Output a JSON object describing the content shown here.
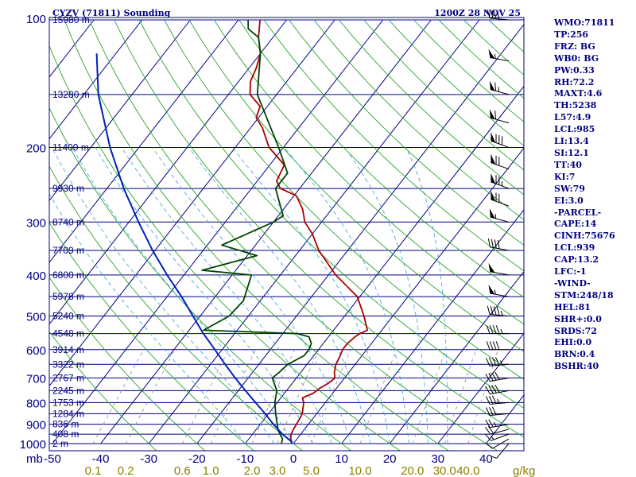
{
  "header": {
    "station": "CYZV (71811) Sounding",
    "time": "1200Z 28 NOV 25"
  },
  "indices": [
    "WMO:71811",
    "TP:256",
    "FRZ: BG",
    "WB0: BG",
    "PW:0.33",
    "RH:72.2",
    "MAXT:4.6",
    "TH:5238",
    "L57:4.9",
    "LCL:985",
    "LI:13.4",
    "SI:12.1",
    "TT:40",
    "KI:7",
    "SW:79",
    "EI:3.0",
    "-PARCEL-",
    "CAPE:14",
    "CINH:75676",
    "LCL:939",
    "CAP:13.2",
    "LFC:-1",
    "-WIND-",
    "STM:248/18",
    "HEL:81",
    "SHR+:0.0",
    "SRDS:72",
    "EHI:0.0",
    "BRN:0.4",
    "BSHR:40"
  ],
  "colors": {
    "isobar": "#000080",
    "isotherm": "#000080",
    "dry_adiabat": "#2aa52a",
    "moist_adiabat": "#4aa8e0",
    "mixing_ratio": "#888888",
    "temperature": "#aa0000",
    "dewpoint": "#004400",
    "parcel": "#0022bb",
    "frame": "#000080",
    "wind_barb": "#000000"
  },
  "chart_data": {
    "type": "skew-t",
    "title": "CYZV (71811) Sounding",
    "valid_time": "1200Z 28 NOV 25",
    "xlabel": "mb",
    "mixing_ratio_unit": "g/kg",
    "x_range_c": [
      -50,
      45
    ],
    "p_range_mb": [
      1000,
      100
    ],
    "temperature_ticks": [
      "-50",
      "-40",
      "-30",
      "-20",
      "-10",
      "0",
      "10",
      "20",
      "30",
      "40"
    ],
    "mixing_ratio_ticks": [
      "0.1",
      "0.2",
      "0.6",
      "1.0",
      "2.0",
      "3.0",
      "5.0",
      "10.0",
      "20.0",
      "30.0",
      "40.0"
    ],
    "pressure_ticks": [
      "100",
      "200",
      "300",
      "400",
      "500",
      "600",
      "700",
      "800",
      "900",
      "1000"
    ],
    "height_labels": [
      {
        "p": 100,
        "h": "15980 m"
      },
      {
        "p": 150,
        "h": "13280 m"
      },
      {
        "p": 200,
        "h": "11400 m"
      },
      {
        "p": 250,
        "h": "9930 m"
      },
      {
        "p": 300,
        "h": "8740 m"
      },
      {
        "p": 350,
        "h": "7709 m"
      },
      {
        "p": 400,
        "h": "6800 m"
      },
      {
        "p": 450,
        "h": "5978 m"
      },
      {
        "p": 500,
        "h": "5240 m"
      },
      {
        "p": 550,
        "h": "4548 m"
      },
      {
        "p": 600,
        "h": "3914 m"
      },
      {
        "p": 650,
        "h": "3322 m"
      },
      {
        "p": 700,
        "h": "2767 m"
      },
      {
        "p": 750,
        "h": "2245 m"
      },
      {
        "p": 800,
        "h": "1753 m"
      },
      {
        "p": 850,
        "h": "1284 m"
      },
      {
        "p": 900,
        "h": "836 m"
      },
      {
        "p": 950,
        "h": "408 m"
      },
      {
        "p": 1000,
        "h": "2 m"
      }
    ],
    "series": [
      {
        "name": "Temperature",
        "points": [
          [
            1000,
            -0.3
          ],
          [
            975,
            -1.3
          ],
          [
            950,
            -2.0
          ],
          [
            925,
            -2.3
          ],
          [
            900,
            -2.5
          ],
          [
            875,
            -2.7
          ],
          [
            850,
            -3.0
          ],
          [
            800,
            -4.5
          ],
          [
            780,
            -5.5
          ],
          [
            760,
            -4.0
          ],
          [
            740,
            -3.5
          ],
          [
            720,
            -2.5
          ],
          [
            700,
            -2.0
          ],
          [
            680,
            -3.0
          ],
          [
            650,
            -4.0
          ],
          [
            620,
            -4.5
          ],
          [
            600,
            -5.0
          ],
          [
            580,
            -5.0
          ],
          [
            560,
            -4.5
          ],
          [
            550,
            -4.0
          ],
          [
            540,
            -3.0
          ],
          [
            500,
            -6.0
          ],
          [
            450,
            -10.5
          ],
          [
            400,
            -18.5
          ],
          [
            350,
            -26.0
          ],
          [
            320,
            -30.0
          ],
          [
            300,
            -33.5
          ],
          [
            280,
            -36.0
          ],
          [
            260,
            -39.5
          ],
          [
            250,
            -44.0
          ],
          [
            240,
            -46.0
          ],
          [
            220,
            -47.0
          ],
          [
            200,
            -53.0
          ],
          [
            180,
            -57.5
          ],
          [
            170,
            -60.5
          ],
          [
            160,
            -61.5
          ],
          [
            150,
            -65.5
          ],
          [
            140,
            -67.5
          ],
          [
            130,
            -68.5
          ],
          [
            120,
            -70.0
          ],
          [
            110,
            -73.0
          ],
          [
            102,
            -75.0
          ],
          [
            100,
            -75.5
          ]
        ]
      },
      {
        "name": "Dewpoint",
        "points": [
          [
            1000,
            -2.5
          ],
          [
            975,
            -3.0
          ],
          [
            950,
            -4.3
          ],
          [
            925,
            -5.5
          ],
          [
            900,
            -6.5
          ],
          [
            850,
            -8.5
          ],
          [
            800,
            -10.5
          ],
          [
            750,
            -12.0
          ],
          [
            700,
            -15.0
          ],
          [
            680,
            -14.5
          ],
          [
            650,
            -14.0
          ],
          [
            620,
            -12.0
          ],
          [
            600,
            -12.0
          ],
          [
            580,
            -12.5
          ],
          [
            560,
            -14.0
          ],
          [
            550,
            -17.0
          ],
          [
            540,
            -37.0
          ],
          [
            500,
            -34.0
          ],
          [
            460,
            -33.5
          ],
          [
            400,
            -36.0
          ],
          [
            390,
            -47.0
          ],
          [
            360,
            -38.0
          ],
          [
            340,
            -47.0
          ],
          [
            300,
            -40.0
          ],
          [
            290,
            -39.0
          ],
          [
            250,
            -45.0
          ],
          [
            230,
            -45.0
          ],
          [
            200,
            -51.0
          ],
          [
            150,
            -64.0
          ],
          [
            120,
            -70.0
          ],
          [
            110,
            -73.0
          ],
          [
            105,
            -76.5
          ],
          [
            100,
            -78.0
          ]
        ]
      },
      {
        "name": "Parcel",
        "points": [
          [
            1000,
            -0.3
          ],
          [
            985,
            -1.0
          ],
          [
            950,
            -3.8
          ],
          [
            900,
            -7.3
          ],
          [
            850,
            -10.7
          ],
          [
            800,
            -14.5
          ],
          [
            750,
            -18.5
          ],
          [
            700,
            -22.7
          ],
          [
            650,
            -27.0
          ],
          [
            600,
            -31.5
          ],
          [
            550,
            -36.5
          ],
          [
            500,
            -41.5
          ],
          [
            450,
            -47.0
          ],
          [
            400,
            -53.5
          ],
          [
            350,
            -60.5
          ],
          [
            300,
            -68.0
          ],
          [
            250,
            -76.5
          ],
          [
            200,
            -86.0
          ],
          [
            150,
            -97.0
          ],
          [
            120,
            -104.0
          ]
        ]
      }
    ],
    "wind_barbs": [
      {
        "p": 1000,
        "dir": 220,
        "spd": 5
      },
      {
        "p": 975,
        "dir": 240,
        "spd": 10
      },
      {
        "p": 950,
        "dir": 250,
        "spd": 15
      },
      {
        "p": 925,
        "dir": 255,
        "spd": 20
      },
      {
        "p": 900,
        "dir": 260,
        "spd": 25
      },
      {
        "p": 850,
        "dir": 265,
        "spd": 30
      },
      {
        "p": 800,
        "dir": 265,
        "spd": 35
      },
      {
        "p": 750,
        "dir": 260,
        "spd": 40
      },
      {
        "p": 700,
        "dir": 260,
        "spd": 40
      },
      {
        "p": 650,
        "dir": 265,
        "spd": 45
      },
      {
        "p": 600,
        "dir": 270,
        "spd": 40
      },
      {
        "p": 550,
        "dir": 270,
        "spd": 45
      },
      {
        "p": 500,
        "dir": 275,
        "spd": 45
      },
      {
        "p": 450,
        "dir": 280,
        "spd": 55
      },
      {
        "p": 400,
        "dir": 280,
        "spd": 50
      },
      {
        "p": 350,
        "dir": 280,
        "spd": 40
      },
      {
        "p": 300,
        "dir": 285,
        "spd": 55
      },
      {
        "p": 275,
        "dir": 290,
        "spd": 70
      },
      {
        "p": 250,
        "dir": 290,
        "spd": 75
      },
      {
        "p": 225,
        "dir": 290,
        "spd": 70
      },
      {
        "p": 200,
        "dir": 290,
        "spd": 80
      },
      {
        "p": 175,
        "dir": 285,
        "spd": 60
      },
      {
        "p": 150,
        "dir": 285,
        "spd": 65
      },
      {
        "p": 125,
        "dir": 280,
        "spd": 55
      },
      {
        "p": 100,
        "dir": 275,
        "spd": 40
      }
    ]
  }
}
